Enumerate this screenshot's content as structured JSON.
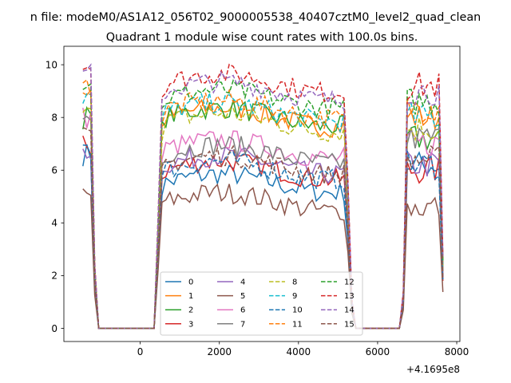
{
  "chart_data": {
    "type": "line",
    "suptitle": "n file: modeM0/AS1A12_056T02_9000005538_40407cztM0_level2_quad_clean",
    "title": "Quadrant 1 module wise count rates with 100.0s bins.",
    "xlabel": "",
    "ylabel": "",
    "x_offset_label": "+4.1695e8",
    "xlim": [
      -1930,
      8080
    ],
    "ylim": [
      -0.5,
      10.7
    ],
    "xticks": [
      0,
      2000,
      4000,
      6000,
      8000
    ],
    "xtick_labels": [
      "0",
      "2000",
      "4000",
      "6000",
      "8000"
    ],
    "yticks": [
      0,
      2,
      4,
      6,
      8,
      10
    ],
    "ytick_labels": [
      "0",
      "2",
      "4",
      "6",
      "8",
      "10"
    ],
    "grid": false,
    "legend": {
      "location": "lower center",
      "ncol": 4
    },
    "x_note": "x values are seconds relative to the printed offset +4.1695e8",
    "bin_seconds": 100,
    "series": [
      {
        "name": "0",
        "color": "#1f77b4",
        "dash": "solid",
        "levels": [
          6.6,
          5.5,
          6.2
        ]
      },
      {
        "name": "1",
        "color": "#ff7f0e",
        "dash": "solid",
        "levels": [
          9.0,
          8.0,
          8.0
        ]
      },
      {
        "name": "2",
        "color": "#2ca02c",
        "dash": "solid",
        "levels": [
          8.0,
          8.0,
          7.2
        ]
      },
      {
        "name": "3",
        "color": "#d62728",
        "dash": "solid",
        "levels": [
          6.9,
          6.0,
          6.0
        ]
      },
      {
        "name": "4",
        "color": "#9467bd",
        "dash": "solid",
        "levels": [
          6.8,
          6.2,
          6.2
        ]
      },
      {
        "name": "5",
        "color": "#8c564b",
        "dash": "solid",
        "levels": [
          5.1,
          4.8,
          4.6
        ]
      },
      {
        "name": "6",
        "color": "#e377c2",
        "dash": "solid",
        "levels": [
          8.0,
          6.8,
          7.0
        ]
      },
      {
        "name": "7",
        "color": "#7f7f7f",
        "dash": "solid",
        "levels": [
          8.0,
          6.6,
          7.2
        ]
      },
      {
        "name": "8",
        "color": "#bcbd22",
        "dash": "dashed",
        "levels": [
          8.6,
          7.8,
          7.6
        ]
      },
      {
        "name": "9",
        "color": "#17becf",
        "dash": "dashed",
        "levels": [
          8.8,
          8.2,
          8.0
        ]
      },
      {
        "name": "10",
        "color": "#1f77b4",
        "dash": "dashed",
        "levels": [
          7.0,
          6.0,
          6.2
        ]
      },
      {
        "name": "11",
        "color": "#ff7f0e",
        "dash": "dashed",
        "levels": [
          9.2,
          8.3,
          8.4
        ]
      },
      {
        "name": "12",
        "color": "#2ca02c",
        "dash": "dashed",
        "levels": [
          9.4,
          8.7,
          8.6
        ]
      },
      {
        "name": "13",
        "color": "#d62728",
        "dash": "dashed",
        "levels": [
          10.0,
          9.3,
          9.2
        ]
      },
      {
        "name": "14",
        "color": "#9467bd",
        "dash": "dashed",
        "levels": [
          9.6,
          9.0,
          9.0
        ]
      },
      {
        "name": "15",
        "color": "#8c564b",
        "dash": "dashed",
        "levels": [
          7.2,
          6.2,
          6.4
        ]
      }
    ]
  }
}
